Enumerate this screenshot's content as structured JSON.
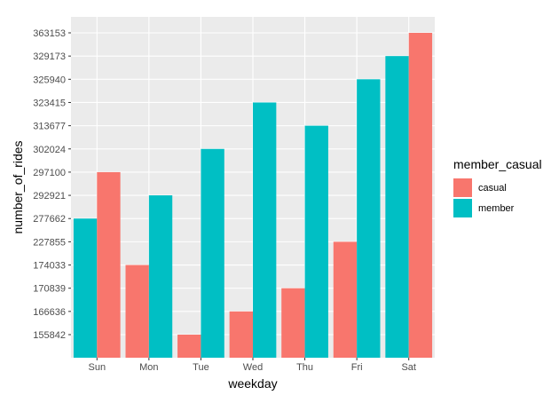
{
  "chart_data": {
    "type": "bar",
    "xlabel": "weekday",
    "ylabel": "number_of_rides",
    "categories": [
      "Sun",
      "Mon",
      "Tue",
      "Wed",
      "Thu",
      "Fri",
      "Sat"
    ],
    "y_ticks": [
      "155842",
      "166636",
      "170839",
      "174033",
      "227855",
      "277662",
      "292921",
      "297100",
      "302024",
      "313677",
      "323415",
      "325940",
      "329173",
      "363153"
    ],
    "legend": {
      "title": "member_casual",
      "placement": "right"
    },
    "grid": true,
    "series": [
      {
        "name": "casual",
        "color": "#F8766D",
        "values": [
          "297100",
          "174033",
          "155842",
          "166636",
          "170839",
          "227855",
          "363153"
        ]
      },
      {
        "name": "member",
        "color": "#00BFC4",
        "values": [
          "277662",
          "292921",
          "302024",
          "323415",
          "313677",
          "325940",
          "329173"
        ]
      }
    ],
    "panel_background": "#EBEBEB",
    "gridline_color": "#FFFFFF"
  }
}
